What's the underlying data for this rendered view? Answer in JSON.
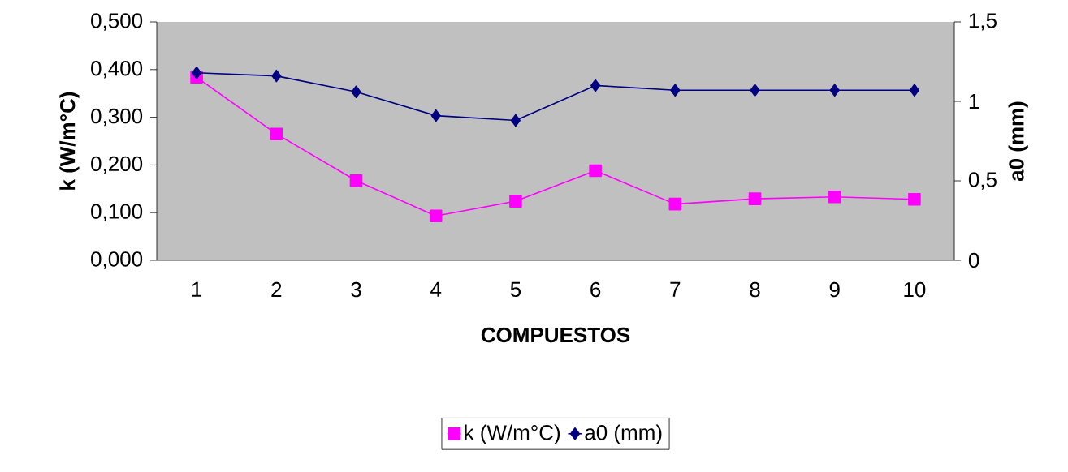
{
  "chart_data": {
    "type": "line",
    "xlabel": "COMPUESTOS",
    "ylabel": "k (W/m°C)",
    "y2label": "a0 (mm)",
    "categories": [
      "1",
      "2",
      "3",
      "4",
      "5",
      "6",
      "7",
      "8",
      "9",
      "10"
    ],
    "series": [
      {
        "name": "k (W/m°C)",
        "color": "#ff00ff",
        "marker": "square",
        "values": [
          0.384,
          0.265,
          0.167,
          0.093,
          0.124,
          0.188,
          0.118,
          0.129,
          0.133,
          0.128
        ]
      },
      {
        "name": "a0 (mm)",
        "color": "#000080",
        "marker": "diamond",
        "axis": "y2",
        "values": [
          1.18,
          1.16,
          1.06,
          0.91,
          0.88,
          1.1,
          1.07,
          1.07,
          1.07,
          1.07
        ]
      }
    ],
    "ylim": [
      0,
      0.5
    ],
    "yticks": [
      {
        "value": 0,
        "label": "0,000"
      },
      {
        "value": 0.1,
        "label": "0,100"
      },
      {
        "value": 0.2,
        "label": "0,200"
      },
      {
        "value": 0.3,
        "label": "0,300"
      },
      {
        "value": 0.4,
        "label": "0,400"
      },
      {
        "value": 0.5,
        "label": "0,500"
      }
    ],
    "y2lim": [
      0,
      1.5
    ],
    "y2ticks": [
      0,
      {
        "value": 0.5,
        "label": "0,5"
      },
      1,
      {
        "value": 1.5,
        "label": "1,5"
      }
    ],
    "grid": false,
    "legend": "bottom"
  }
}
